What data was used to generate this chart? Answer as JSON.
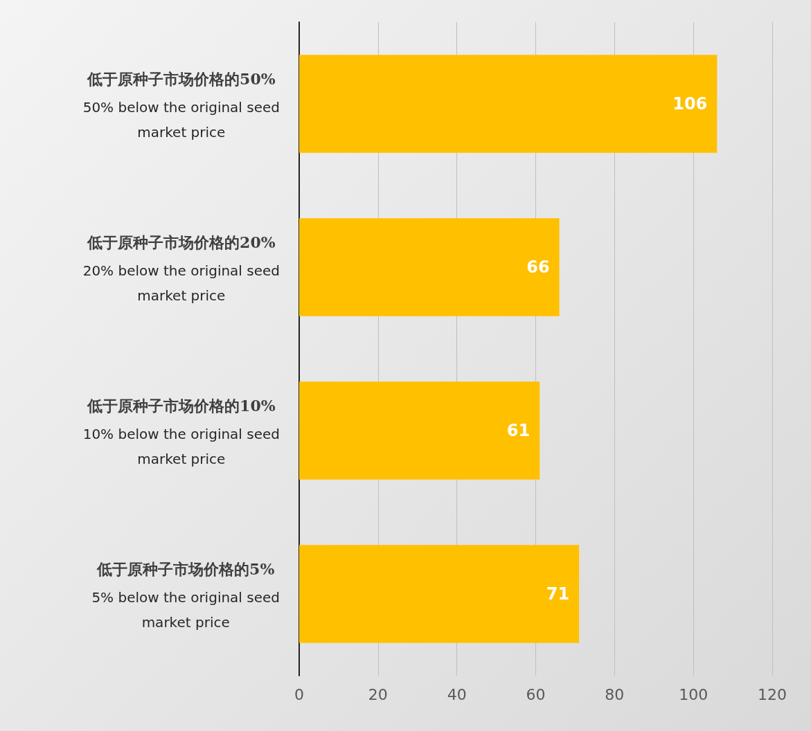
{
  "chart_data": {
    "type": "bar",
    "orientation": "horizontal",
    "categories": [
      "低于原种子市场价格的50%\n50% below the original seed\nmarket price",
      "低于原种子市场价格的20%\n20% below the original seed\nmarket price",
      "低于原种子市场价格的10%\n10% below the original seed\nmarket price",
      "低于原种子市场价格的5%\n5% below the original seed\nmarket price"
    ],
    "values": [
      106,
      66,
      61,
      71
    ],
    "color": "#ffc000",
    "data_labels": true,
    "xlim": [
      0,
      120
    ],
    "xticks": [
      0,
      20,
      40,
      60,
      80,
      100,
      120
    ],
    "grid": "x"
  }
}
